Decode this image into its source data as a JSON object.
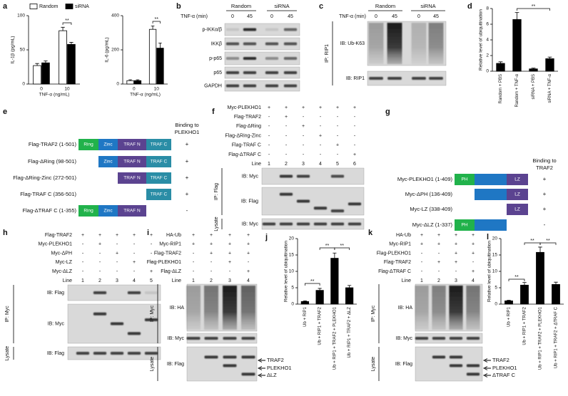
{
  "chart_data": [
    {
      "type": "bar",
      "panel_label": "a",
      "ylabel": "IL-1β (pg/mL)",
      "xlabel": "TNF-α (ng/mL)",
      "categories": [
        "0",
        "10"
      ],
      "series": [
        {
          "name": "Random",
          "color": "#ffffff",
          "values": [
            27,
            78
          ],
          "errors": [
            3,
            5
          ]
        },
        {
          "name": "siRNA",
          "color": "#000000",
          "values": [
            31,
            58
          ],
          "errors": [
            3,
            3
          ]
        }
      ],
      "ylim": [
        0,
        100
      ],
      "yticks": [
        0,
        50,
        100
      ],
      "annotations": [
        "**"
      ]
    },
    {
      "type": "bar",
      "ylabel": "IL-6 (pg/mL)",
      "xlabel": "TNF-α (ng/mL)",
      "categories": [
        "0",
        "10"
      ],
      "series": [
        {
          "color": "#ffffff",
          "values": [
            20,
            320
          ],
          "errors": [
            5,
            20
          ]
        },
        {
          "color": "#000000",
          "values": [
            20,
            210
          ],
          "errors": [
            5,
            30
          ]
        }
      ],
      "ylim": [
        0,
        400
      ],
      "yticks": [
        0,
        200,
        400
      ],
      "annotations": [
        "**"
      ]
    },
    {
      "type": "bar",
      "panel_label": "d",
      "ylabel": "Relative level of ubiquitination",
      "categories": [
        "Random + PBS",
        "Random + TNF-α",
        "siRNA + PBS",
        "siRNA + TNF-α"
      ],
      "values": [
        1.0,
        6.6,
        0.3,
        1.6
      ],
      "errors": [
        0.2,
        0.9,
        0.1,
        0.2
      ],
      "color": "#000000",
      "ylim": [
        0,
        8
      ],
      "yticks": [
        0,
        2,
        4,
        6,
        8
      ],
      "annotations": [
        "**"
      ]
    },
    {
      "type": "bar",
      "panel_label": "j",
      "ylabel": "Relative level of ubiquitination",
      "categories": [
        "Ub + RIP1",
        "Ub + RIP1 + TRAF2",
        "Ub + RIP1 + TRAF2 + PLEKHO1",
        "Ub + RIP1 + TRAF2 + ΔLZ"
      ],
      "values": [
        0.8,
        4.2,
        14,
        5
      ],
      "errors": [
        0.2,
        0.6,
        1.6,
        0.7
      ],
      "color": "#000000",
      "ylim": [
        0,
        20
      ],
      "yticks": [
        0,
        5,
        10,
        15,
        20
      ],
      "annotations": [
        "**",
        "**",
        "**"
      ]
    },
    {
      "type": "bar",
      "panel_label": "l",
      "ylabel": "Relative level of ubiquitination",
      "categories": [
        "Ub + RIP1",
        "Ub + RIP1 + TRAF2",
        "Ub + RIP1 + TRAF2 + PLEKHO1",
        "Ub + RIP1 + TRAF2 + ΔTRAF C"
      ],
      "values": [
        1,
        5.8,
        15.8,
        6
      ],
      "errors": [
        0.2,
        0.8,
        1.6,
        0.7
      ],
      "color": "#000000",
      "ylim": [
        0,
        20
      ],
      "yticks": [
        0,
        5,
        10,
        15,
        20
      ],
      "annotations": [
        "**",
        "**",
        "**"
      ]
    }
  ],
  "blots": {
    "b": {
      "label": "b",
      "treatment": "TNF-α (min)",
      "groups": [
        "Random",
        "siRNA"
      ],
      "lanes": [
        "0",
        "45",
        "0",
        "45"
      ],
      "rows": [
        "p-IKKα/β",
        "IKKβ",
        "p-p65",
        "p65",
        "GAPDH"
      ]
    },
    "c": {
      "label": "c",
      "treatment": "TNF-α (min)",
      "groups": [
        "Random",
        "siRNA"
      ],
      "lanes": [
        "0",
        "45",
        "0",
        "45"
      ],
      "ip": "IP: RIP1",
      "rows": [
        "IB: Ub-K63",
        "IB: RIP1"
      ]
    },
    "f": {
      "label": "f",
      "conditions": [
        {
          "label": "Myc-PLEKHO1",
          "cells": [
            "+",
            "+",
            "+",
            "+",
            "+",
            "+"
          ]
        },
        {
          "label": "Flag-TRAF2",
          "cells": [
            "-",
            "+",
            "-",
            "-",
            "-",
            "-"
          ]
        },
        {
          "label": "Flag-ΔRing",
          "cells": [
            "-",
            "-",
            "+",
            "-",
            "-",
            "-"
          ]
        },
        {
          "label": "Flag-ΔRing-Zinc",
          "cells": [
            "-",
            "-",
            "-",
            "+",
            "-",
            "-"
          ]
        },
        {
          "label": "Flag-TRAF C",
          "cells": [
            "-",
            "-",
            "-",
            "-",
            "+",
            "-"
          ]
        },
        {
          "label": "Flag-ΔTRAF C",
          "cells": [
            "-",
            "-",
            "-",
            "-",
            "-",
            "+"
          ]
        }
      ],
      "line": {
        "label": "Line",
        "cells": [
          1,
          2,
          3,
          4,
          5,
          6
        ]
      },
      "sections": [
        {
          "label": "IP: Flag",
          "rows": [
            "IB: Myc",
            "IB: Flag"
          ]
        },
        {
          "label": "Lysate",
          "rows": [
            "IB: Myc"
          ]
        }
      ]
    },
    "h": {
      "label": "h",
      "conditions": [
        {
          "label": "Flag-TRAF2",
          "cells": [
            "+",
            "+",
            "+",
            "+",
            "+"
          ]
        },
        {
          "label": "Myc-PLEKHO1",
          "cells": [
            "-",
            "+",
            "-",
            "-",
            "-"
          ]
        },
        {
          "label": "Myc-ΔPH",
          "cells": [
            "-",
            "-",
            "+",
            "-",
            "-"
          ]
        },
        {
          "label": "Myc-LZ",
          "cells": [
            "-",
            "-",
            "-",
            "+",
            "-"
          ]
        },
        {
          "label": "Myc-ΔLZ",
          "cells": [
            "-",
            "-",
            "-",
            "-",
            "+"
          ]
        }
      ],
      "line": {
        "label": "Line",
        "cells": [
          1,
          2,
          3,
          4,
          5
        ]
      },
      "sections": [
        {
          "label": "IP: Myc",
          "rows": [
            "IB: Flag",
            "IB: Myc"
          ]
        },
        {
          "label": "Lysate",
          "rows": [
            "IB: Flag"
          ]
        }
      ]
    },
    "i": {
      "label": "i",
      "conditions": [
        {
          "label": "HA-Ub",
          "cells": [
            "+",
            "+",
            "+",
            "+"
          ]
        },
        {
          "label": "Myc-RIP1",
          "cells": [
            "+",
            "+",
            "+",
            "+"
          ]
        },
        {
          "label": "Flag-TRAF2",
          "cells": [
            "-",
            "+",
            "+",
            "+"
          ]
        },
        {
          "label": "Flag-PLEKHO1",
          "cells": [
            "-",
            "-",
            "+",
            "-"
          ]
        },
        {
          "label": "Flag-ΔLZ",
          "cells": [
            "-",
            "-",
            "-",
            "+"
          ]
        }
      ],
      "line": {
        "label": "Line",
        "cells": [
          1,
          2,
          3,
          4
        ]
      },
      "sections": [
        {
          "label": "IP: Myc",
          "rows": [
            "IB: HA",
            "IB: Myc"
          ]
        },
        {
          "label": "Lysate",
          "rows": [
            "IB: Flag"
          ]
        }
      ],
      "arrows": [
        "TRAF2",
        "PLEKHO1",
        "ΔLZ"
      ]
    },
    "k": {
      "label": "k",
      "conditions": [
        {
          "label": "HA-Ub",
          "cells": [
            "+",
            "+",
            "+",
            "+"
          ]
        },
        {
          "label": "Myc-RIP1",
          "cells": [
            "+",
            "+",
            "+",
            "+"
          ]
        },
        {
          "label": "Flag-PLEKHO1",
          "cells": [
            "-",
            "-",
            "+",
            "+"
          ]
        },
        {
          "label": "Flag-TRAF2",
          "cells": [
            "-",
            "+",
            "+",
            "-"
          ]
        },
        {
          "label": "Flag-ΔTRAF C",
          "cells": [
            "-",
            "-",
            "-",
            "+"
          ]
        }
      ],
      "line": {
        "label": "Line",
        "cells": [
          1,
          2,
          3,
          4
        ]
      },
      "sections": [
        {
          "label": "IP: Myc",
          "rows": [
            "IB: HA",
            "IB: Myc"
          ]
        },
        {
          "label": "Lysate",
          "rows": [
            "IB: Flag"
          ]
        }
      ],
      "arrows": [
        "TRAF2",
        "PLEKHO1",
        "ΔTRAF C"
      ]
    }
  },
  "domains": {
    "e": {
      "label": "e",
      "header": [
        "Binding to",
        "PLEKHO1"
      ],
      "constructs": [
        {
          "label": "Flag-TRAF2 (1-501)",
          "domains": [
            "Ring",
            "Zinc",
            "TRAF N",
            "TRAF C"
          ],
          "binding": "+"
        },
        {
          "label": "Flag-ΔRing (98-501)",
          "domains": [
            "Zinc",
            "TRAF N",
            "TRAF C"
          ],
          "binding": "+"
        },
        {
          "label": "Flag-ΔRing-Zinc (272-501)",
          "domains": [
            "TRAF N",
            "TRAF C"
          ],
          "binding": "+"
        },
        {
          "label": "Flag-TRAF C (356-501)",
          "domains": [
            "TRAF C"
          ],
          "binding": "+"
        },
        {
          "label": "Flag-ΔTRAF C (1-355)",
          "domains": [
            "Ring",
            "Zinc",
            "TRAF N"
          ],
          "binding": "-"
        }
      ]
    },
    "g": {
      "label": "g",
      "header": [
        "Binding to",
        "TRAF2"
      ],
      "constructs": [
        {
          "label": "Myc-PLEKHO1 (1-409)",
          "domains": [
            "PH",
            "LZ"
          ],
          "binding": "+"
        },
        {
          "label": "Myc-ΔPH (136-409)",
          "domains": [
            "LZ"
          ],
          "binding": "+"
        },
        {
          "label": "Myc-LZ (338-409)",
          "domains": [
            "LZ"
          ],
          "binding": "+"
        },
        {
          "label": "Myc-ΔLZ (1-337)",
          "domains": [
            "PH"
          ],
          "binding": "-"
        }
      ]
    }
  }
}
